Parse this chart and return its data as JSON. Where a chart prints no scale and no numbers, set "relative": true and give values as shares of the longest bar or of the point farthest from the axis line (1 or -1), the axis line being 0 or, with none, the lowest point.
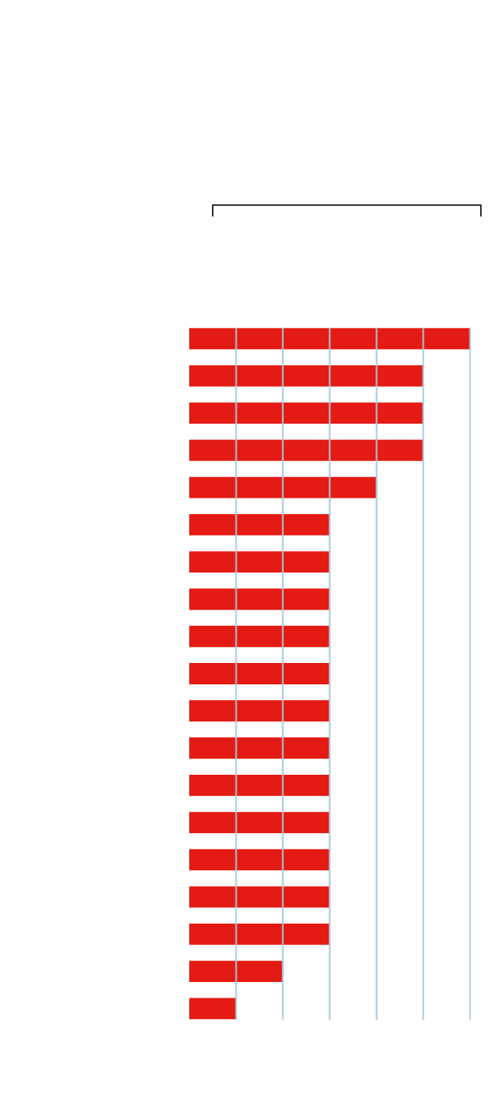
{
  "chart_data": {
    "type": "bar",
    "orientation": "horizontal",
    "relative": true,
    "categories": [
      null,
      null,
      null,
      null,
      null,
      null,
      null,
      null,
      null,
      null,
      null,
      null,
      null,
      null,
      null,
      null,
      null,
      null,
      null
    ],
    "values": [
      1,
      0.833,
      0.833,
      0.833,
      0.667,
      0.5,
      0.5,
      0.5,
      0.5,
      0.5,
      0.5,
      0.5,
      0.5,
      0.5,
      0.5,
      0.5,
      0.5,
      0.333,
      0.167
    ],
    "color": "#e31b14",
    "ref_lines": [
      {
        "axis": "x",
        "value": 0.167,
        "color": "#a9c8d8"
      },
      {
        "axis": "x",
        "value": 0.333,
        "color": "#a9c8d8"
      },
      {
        "axis": "x",
        "value": 0.5,
        "color": "#a9c8d8"
      },
      {
        "axis": "x",
        "value": 0.667,
        "color": "#a9c8d8"
      },
      {
        "axis": "x",
        "value": 0.833,
        "color": "#a9c8d8"
      },
      {
        "axis": "x",
        "value": 1,
        "color": "#a9c8d8"
      }
    ]
  }
}
